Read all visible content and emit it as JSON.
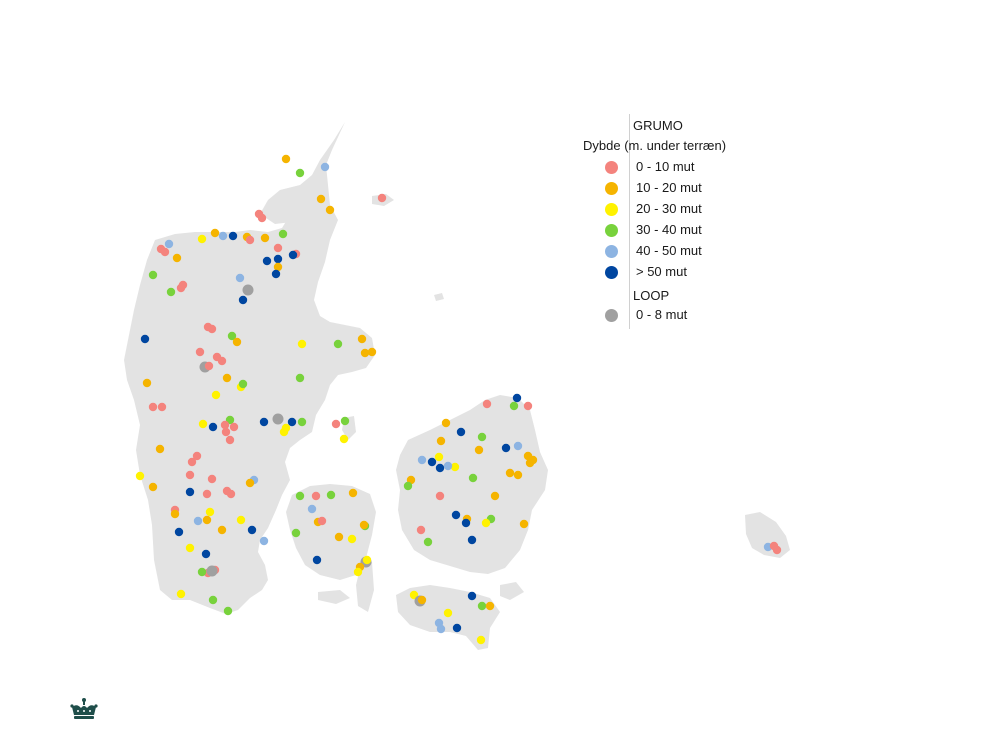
{
  "legend": {
    "grumo_title": "GRUMO",
    "depth_title": "Dybde (m. under terræn)",
    "grumo_classes": [
      {
        "label": "0 - 10 mut",
        "color": "#F4837D"
      },
      {
        "label": "10 - 20 mut",
        "color": "#F5B400"
      },
      {
        "label": "20 - 30 mut",
        "color": "#FFF200"
      },
      {
        "label": "30 - 40 mut",
        "color": "#78D23C"
      },
      {
        "label": "40 - 50 mut",
        "color": "#8DB4E2"
      },
      {
        "label": "> 50 mut",
        "color": "#0046A0"
      }
    ],
    "loop_title": "LOOP",
    "loop_classes": [
      {
        "label": "0 - 8 mut",
        "color": "#A0A0A0"
      }
    ]
  },
  "map": {
    "land_color": "#E3E3E3",
    "logo": "crown-logo"
  }
}
